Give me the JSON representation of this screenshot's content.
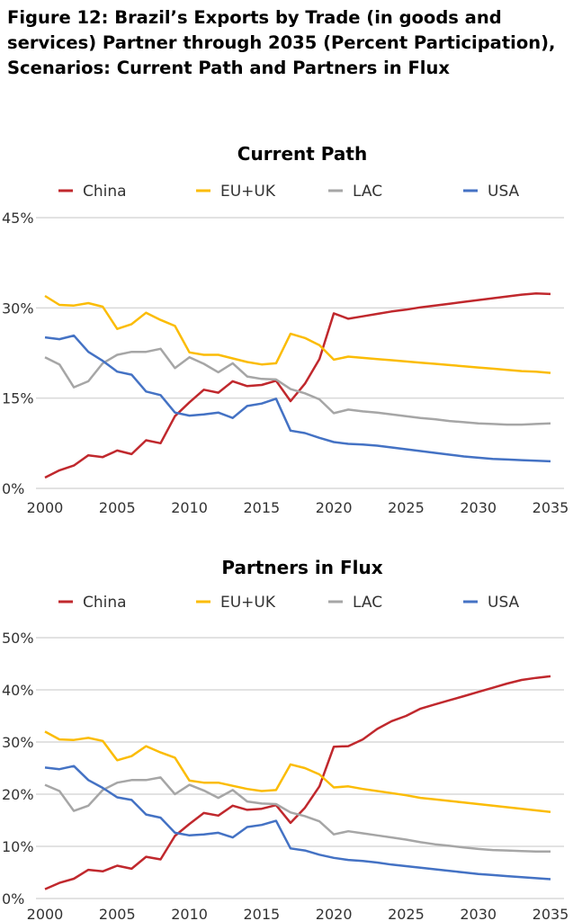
{
  "figure_title": "Figure 12: Brazil’s Exports by Trade (in goods and services) Partner through 2035 (Percent Participation), Scenarios: Current Path and Partners in Flux",
  "colors": {
    "China": "#c0282d",
    "EU+UK": "#fbbc05",
    "LAC": "#a6a6a6",
    "USA": "#4472c4",
    "grid": "#d9d9d9"
  },
  "chart_data": [
    {
      "type": "line",
      "title": "Current Path",
      "xlabel": "",
      "ylabel": "",
      "legend": "top",
      "grid": true,
      "xlim": [
        2000,
        2035
      ],
      "ylim": [
        0,
        45
      ],
      "x_ticks": [
        "2000",
        "2005",
        "2010",
        "2015",
        "2020",
        "2025",
        "2030",
        "2035"
      ],
      "y_ticks": [
        "0%",
        "15%",
        "30%",
        "45%"
      ],
      "y_tick_values": [
        0,
        15,
        30,
        45
      ],
      "x": [
        2000,
        2001,
        2002,
        2003,
        2004,
        2005,
        2006,
        2007,
        2008,
        2009,
        2010,
        2011,
        2012,
        2013,
        2014,
        2015,
        2016,
        2017,
        2018,
        2019,
        2020,
        2021,
        2022,
        2023,
        2024,
        2025,
        2026,
        2027,
        2028,
        2029,
        2030,
        2031,
        2032,
        2033,
        2034,
        2035
      ],
      "series": [
        {
          "name": "China",
          "values": [
            1.8,
            3.0,
            3.8,
            5.5,
            5.2,
            6.3,
            5.7,
            8.0,
            7.5,
            12.0,
            14.3,
            16.4,
            15.9,
            17.8,
            17.0,
            17.2,
            17.9,
            14.5,
            17.4,
            21.5,
            29.1,
            28.2,
            28.6,
            29.0,
            29.4,
            29.7,
            30.1,
            30.4,
            30.7,
            31.0,
            31.3,
            31.6,
            31.9,
            32.2,
            32.4,
            32.3
          ]
        },
        {
          "name": "EU+UK",
          "values": [
            32.0,
            30.5,
            30.4,
            30.8,
            30.2,
            26.5,
            27.3,
            29.2,
            28.0,
            27.0,
            22.6,
            22.2,
            22.2,
            21.6,
            21.0,
            20.6,
            20.8,
            25.7,
            25.0,
            23.8,
            21.4,
            21.9,
            21.7,
            21.5,
            21.3,
            21.1,
            20.9,
            20.7,
            20.5,
            20.3,
            20.1,
            19.9,
            19.7,
            19.5,
            19.4,
            19.2
          ]
        },
        {
          "name": "LAC",
          "values": [
            21.8,
            20.6,
            16.8,
            17.8,
            20.8,
            22.2,
            22.7,
            22.7,
            23.2,
            20.0,
            21.8,
            20.7,
            19.3,
            20.8,
            18.6,
            18.2,
            18.1,
            16.5,
            15.8,
            14.8,
            12.5,
            13.1,
            12.8,
            12.6,
            12.3,
            12.0,
            11.7,
            11.5,
            11.2,
            11.0,
            10.8,
            10.7,
            10.6,
            10.6,
            10.7,
            10.8
          ]
        },
        {
          "name": "USA",
          "values": [
            25.1,
            24.8,
            25.4,
            22.7,
            21.2,
            19.4,
            18.9,
            16.1,
            15.5,
            12.6,
            12.1,
            12.3,
            12.6,
            11.7,
            13.7,
            14.1,
            14.9,
            9.6,
            9.2,
            8.4,
            7.7,
            7.4,
            7.3,
            7.1,
            6.8,
            6.5,
            6.2,
            5.9,
            5.6,
            5.3,
            5.1,
            4.9,
            4.8,
            4.7,
            4.6,
            4.5
          ]
        }
      ]
    },
    {
      "type": "line",
      "title": "Partners in Flux",
      "xlabel": "",
      "ylabel": "",
      "legend": "top",
      "grid": true,
      "xlim": [
        2000,
        2035
      ],
      "ylim": [
        0,
        50
      ],
      "x_ticks": [
        "2000",
        "2005",
        "2010",
        "2015",
        "2020",
        "2025",
        "2030",
        "2035"
      ],
      "y_ticks": [
        "0%",
        "10%",
        "20%",
        "30%",
        "40%",
        "50%"
      ],
      "y_tick_values": [
        0,
        10,
        20,
        30,
        40,
        50
      ],
      "x": [
        2000,
        2001,
        2002,
        2003,
        2004,
        2005,
        2006,
        2007,
        2008,
        2009,
        2010,
        2011,
        2012,
        2013,
        2014,
        2015,
        2016,
        2017,
        2018,
        2019,
        2020,
        2021,
        2022,
        2023,
        2024,
        2025,
        2026,
        2027,
        2028,
        2029,
        2030,
        2031,
        2032,
        2033,
        2034,
        2035
      ],
      "series": [
        {
          "name": "China",
          "values": [
            1.8,
            3.0,
            3.8,
            5.5,
            5.2,
            6.3,
            5.7,
            8.0,
            7.5,
            12.0,
            14.3,
            16.4,
            15.9,
            17.8,
            17.0,
            17.2,
            17.9,
            14.5,
            17.4,
            21.5,
            29.1,
            29.2,
            30.5,
            32.5,
            34.0,
            35.0,
            36.4,
            37.2,
            38.0,
            38.8,
            39.6,
            40.4,
            41.2,
            41.9,
            42.3,
            42.6
          ]
        },
        {
          "name": "EU+UK",
          "values": [
            32.0,
            30.5,
            30.4,
            30.8,
            30.2,
            26.5,
            27.3,
            29.2,
            28.0,
            27.0,
            22.6,
            22.2,
            22.2,
            21.6,
            21.0,
            20.6,
            20.8,
            25.7,
            25.0,
            23.8,
            21.3,
            21.5,
            21.0,
            20.6,
            20.2,
            19.8,
            19.3,
            19.0,
            18.7,
            18.4,
            18.1,
            17.8,
            17.5,
            17.2,
            16.9,
            16.6
          ]
        },
        {
          "name": "LAC",
          "values": [
            21.8,
            20.6,
            16.8,
            17.8,
            20.8,
            22.2,
            22.7,
            22.7,
            23.2,
            20.0,
            21.8,
            20.7,
            19.3,
            20.8,
            18.6,
            18.2,
            18.1,
            16.5,
            15.8,
            14.8,
            12.3,
            12.9,
            12.5,
            12.1,
            11.7,
            11.3,
            10.8,
            10.4,
            10.1,
            9.8,
            9.5,
            9.3,
            9.2,
            9.1,
            9.0,
            9.0
          ]
        },
        {
          "name": "USA",
          "values": [
            25.1,
            24.8,
            25.4,
            22.7,
            21.2,
            19.4,
            18.9,
            16.1,
            15.5,
            12.6,
            12.1,
            12.3,
            12.6,
            11.7,
            13.7,
            14.1,
            14.9,
            9.6,
            9.2,
            8.4,
            7.8,
            7.4,
            7.2,
            6.9,
            6.5,
            6.2,
            5.9,
            5.6,
            5.3,
            5.0,
            4.7,
            4.5,
            4.3,
            4.1,
            3.9,
            3.7
          ]
        }
      ]
    }
  ]
}
